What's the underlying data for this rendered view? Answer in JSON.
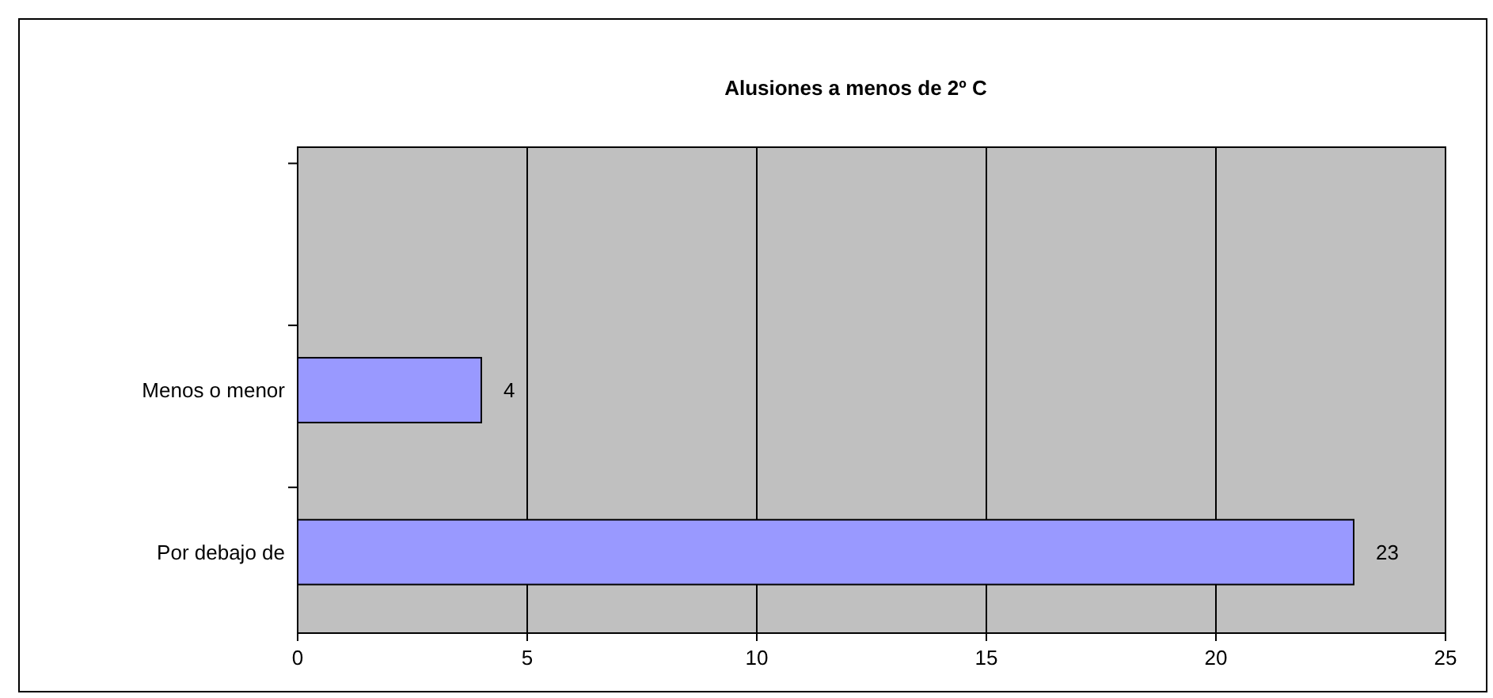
{
  "chart_data": {
    "type": "bar",
    "orientation": "horizontal",
    "title": "Alusiones a menos de 2º C",
    "categories": [
      null,
      "Menos o menor",
      "Por debajo de"
    ],
    "values": [
      null,
      4,
      23
    ],
    "color": "#9999ff",
    "xlim": [
      0,
      25
    ],
    "xticks": [
      0,
      5,
      10,
      15,
      20,
      25
    ],
    "grid": "x",
    "data_labels": true
  }
}
